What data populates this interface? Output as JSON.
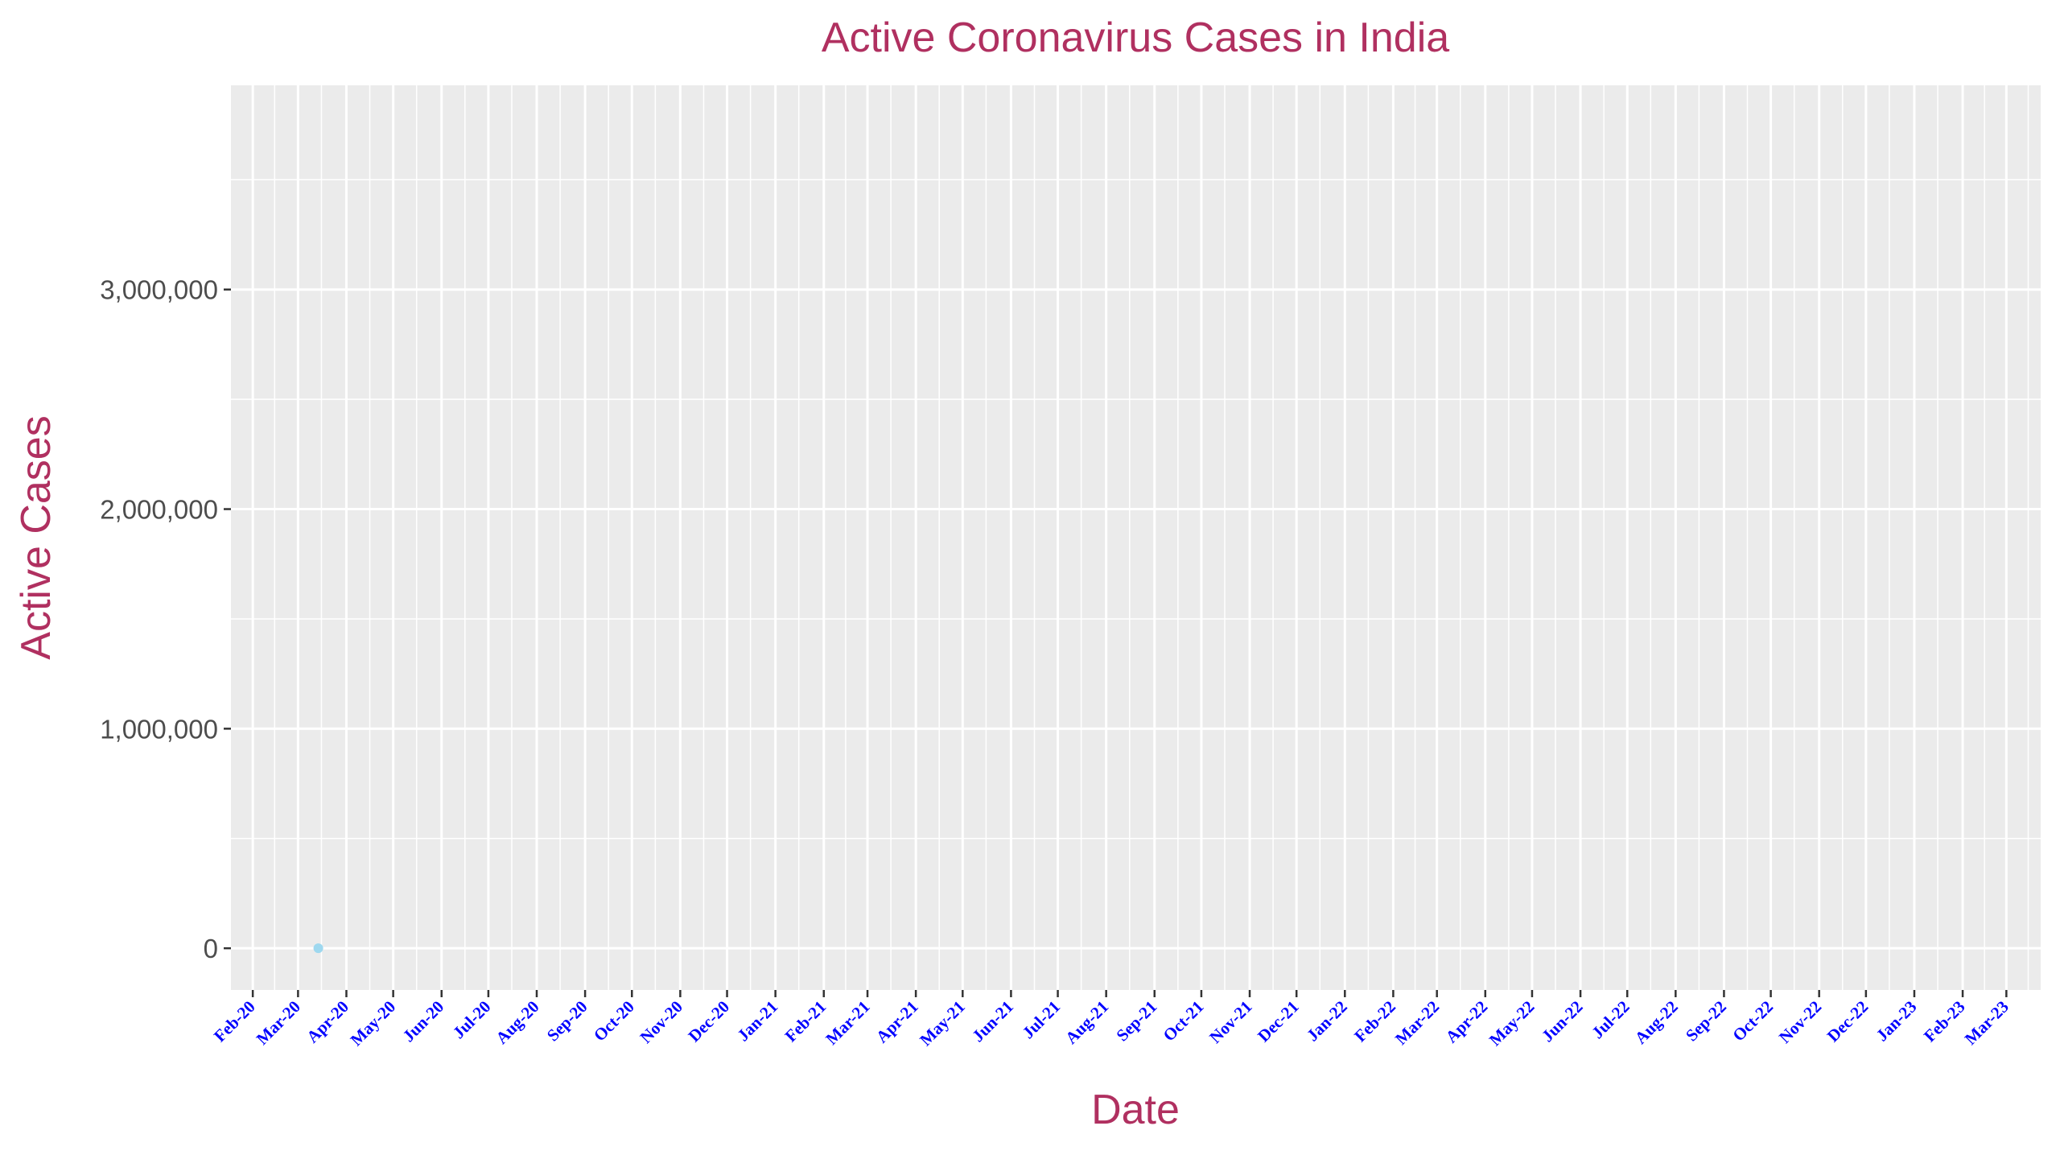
{
  "chart_data": {
    "type": "scatter",
    "title": "Active Coronavirus Cases in India",
    "xlabel": "Date",
    "ylabel": "Active Cases",
    "x_type": "date",
    "xlim": [
      "2020-01-18",
      "2023-03-23"
    ],
    "ylim": [
      -190000,
      3930000
    ],
    "x_ticks": [
      {
        "date": "2020-02-01",
        "label": "Feb-20"
      },
      {
        "date": "2020-03-01",
        "label": "Mar-20"
      },
      {
        "date": "2020-04-01",
        "label": "Apr-20"
      },
      {
        "date": "2020-05-01",
        "label": "May-20"
      },
      {
        "date": "2020-06-01",
        "label": "Jun-20"
      },
      {
        "date": "2020-07-01",
        "label": "Jul-20"
      },
      {
        "date": "2020-08-01",
        "label": "Aug-20"
      },
      {
        "date": "2020-09-01",
        "label": "Sep-20"
      },
      {
        "date": "2020-10-01",
        "label": "Oct-20"
      },
      {
        "date": "2020-11-01",
        "label": "Nov-20"
      },
      {
        "date": "2020-12-01",
        "label": "Dec-20"
      },
      {
        "date": "2021-01-01",
        "label": "Jan-21"
      },
      {
        "date": "2021-02-01",
        "label": "Feb-21"
      },
      {
        "date": "2021-03-01",
        "label": "Mar-21"
      },
      {
        "date": "2021-04-01",
        "label": "Apr-21"
      },
      {
        "date": "2021-05-01",
        "label": "May-21"
      },
      {
        "date": "2021-06-01",
        "label": "Jun-21"
      },
      {
        "date": "2021-07-01",
        "label": "Jul-21"
      },
      {
        "date": "2021-08-01",
        "label": "Aug-21"
      },
      {
        "date": "2021-09-01",
        "label": "Sep-21"
      },
      {
        "date": "2021-10-01",
        "label": "Oct-21"
      },
      {
        "date": "2021-11-01",
        "label": "Nov-21"
      },
      {
        "date": "2021-12-01",
        "label": "Dec-21"
      },
      {
        "date": "2022-01-01",
        "label": "Jan-22"
      },
      {
        "date": "2022-02-01",
        "label": "Feb-22"
      },
      {
        "date": "2022-03-01",
        "label": "Mar-22"
      },
      {
        "date": "2022-04-01",
        "label": "Apr-22"
      },
      {
        "date": "2022-05-01",
        "label": "May-22"
      },
      {
        "date": "2022-06-01",
        "label": "Jun-22"
      },
      {
        "date": "2022-07-01",
        "label": "Jul-22"
      },
      {
        "date": "2022-08-01",
        "label": "Aug-22"
      },
      {
        "date": "2022-09-01",
        "label": "Sep-22"
      },
      {
        "date": "2022-10-01",
        "label": "Oct-22"
      },
      {
        "date": "2022-11-01",
        "label": "Nov-22"
      },
      {
        "date": "2022-12-01",
        "label": "Dec-22"
      },
      {
        "date": "2023-01-01",
        "label": "Jan-23"
      },
      {
        "date": "2023-02-01",
        "label": "Feb-23"
      },
      {
        "date": "2023-03-01",
        "label": "Mar-23"
      }
    ],
    "y_ticks": [
      {
        "value": 0,
        "label": "0"
      },
      {
        "value": 1000000,
        "label": "1,000,000"
      },
      {
        "value": 2000000,
        "label": "2,000,000"
      },
      {
        "value": 3000000,
        "label": "3,000,000"
      }
    ],
    "points": [
      {
        "x": "2020-03-14",
        "y": 100
      }
    ],
    "point_color": "#9ed8ef",
    "grid": true,
    "legend": "none",
    "colors": {
      "panel_background": "#ebebeb",
      "grid": "#ffffff",
      "title": "#b03060",
      "x_tick_labels": "#0000ff",
      "y_tick_labels": "#4d4d4d"
    }
  }
}
